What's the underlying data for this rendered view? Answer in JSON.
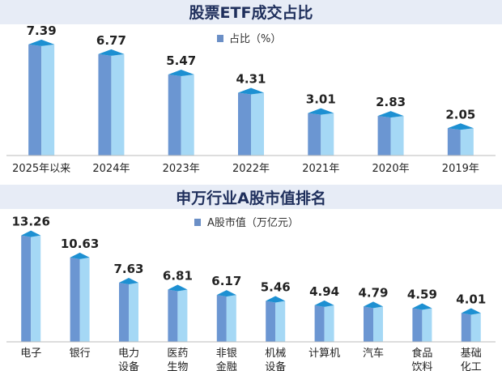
{
  "charts": [
    {
      "title": "股票ETF成交占比",
      "legend": "占比（%）"
    },
    {
      "title": "申万行业A股市值排名",
      "legend": "A股市值（万亿元）"
    }
  ],
  "colors": {
    "header_bg": "#e7ecf6",
    "title_text": "#1f2f5c",
    "bar_front": "#6b96d2",
    "bar_side": "#a5d8f5",
    "bar_top": "#1d90d2",
    "legend_marker": "#6b8fc6",
    "label_text": "#222222"
  },
  "chart_data": [
    {
      "type": "bar",
      "title": "股票ETF成交占比",
      "categories": [
        "2025年以来",
        "2024年",
        "2023年",
        "2022年",
        "2021年",
        "2020年",
        "2019年"
      ],
      "series": [
        {
          "name": "占比（%）",
          "values": [
            7.39,
            6.77,
            5.47,
            4.31,
            3.01,
            2.83,
            2.05
          ]
        }
      ],
      "value_labels": [
        "7.39",
        "6.77",
        "5.47",
        "4.31",
        "3.01",
        "2.83",
        "2.05"
      ],
      "ylim": [
        0,
        8
      ],
      "grid": false,
      "legend_position": "top-center"
    },
    {
      "type": "bar",
      "title": "申万行业A股市值排名",
      "categories": [
        [
          "电子"
        ],
        [
          "银行"
        ],
        [
          "电力",
          "设备"
        ],
        [
          "医药",
          "生物"
        ],
        [
          "非银",
          "金融"
        ],
        [
          "机械",
          "设备"
        ],
        [
          "计算机"
        ],
        [
          "汽车"
        ],
        [
          "食品",
          "饮料"
        ],
        [
          "基础",
          "化工"
        ]
      ],
      "series": [
        {
          "name": "A股市值（万亿元）",
          "values": [
            13.26,
            10.63,
            7.63,
            6.81,
            6.17,
            5.46,
            4.94,
            4.79,
            4.59,
            4.01
          ]
        }
      ],
      "value_labels": [
        "13.26",
        "10.63",
        "7.63",
        "6.81",
        "6.17",
        "5.46",
        "4.94",
        "4.79",
        "4.59",
        "4.01"
      ],
      "ylim": [
        0,
        14
      ],
      "grid": false,
      "legend_position": "top-center"
    }
  ]
}
